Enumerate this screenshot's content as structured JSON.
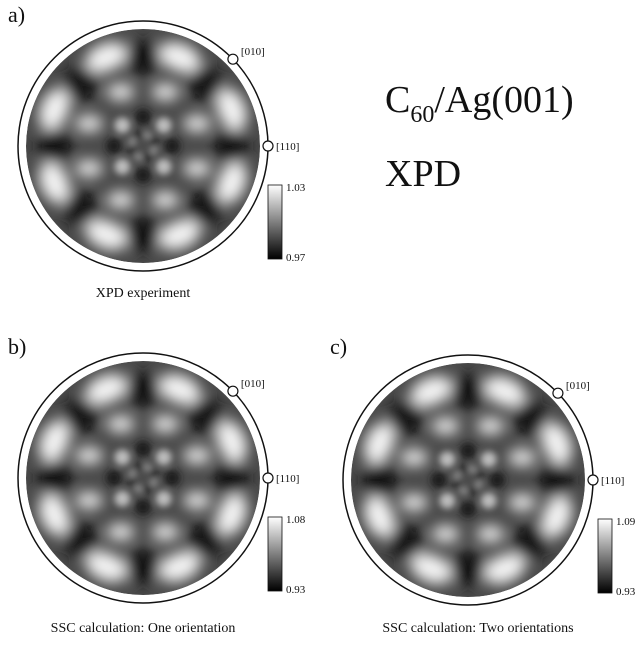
{
  "title": {
    "base": "C",
    "subscript": "60",
    "rest": "/Ag(001)"
  },
  "method": "XPD",
  "panels": [
    {
      "label": "a)",
      "directions": [
        "[010]",
        "[110]"
      ],
      "colorbar": {
        "max": "1.03",
        "min": "0.97"
      },
      "caption": "XPD experiment"
    },
    {
      "label": "b)",
      "directions": [
        "[010]",
        "[110]"
      ],
      "colorbar": {
        "max": "1.08",
        "min": "0.93"
      },
      "caption": "SSC calculation: One orientation"
    },
    {
      "label": "c)",
      "directions": [
        "[010]",
        "[110]"
      ],
      "colorbar": {
        "max": "1.09",
        "min": "0.93"
      },
      "caption": "SSC calculation: Two orientations"
    }
  ]
}
